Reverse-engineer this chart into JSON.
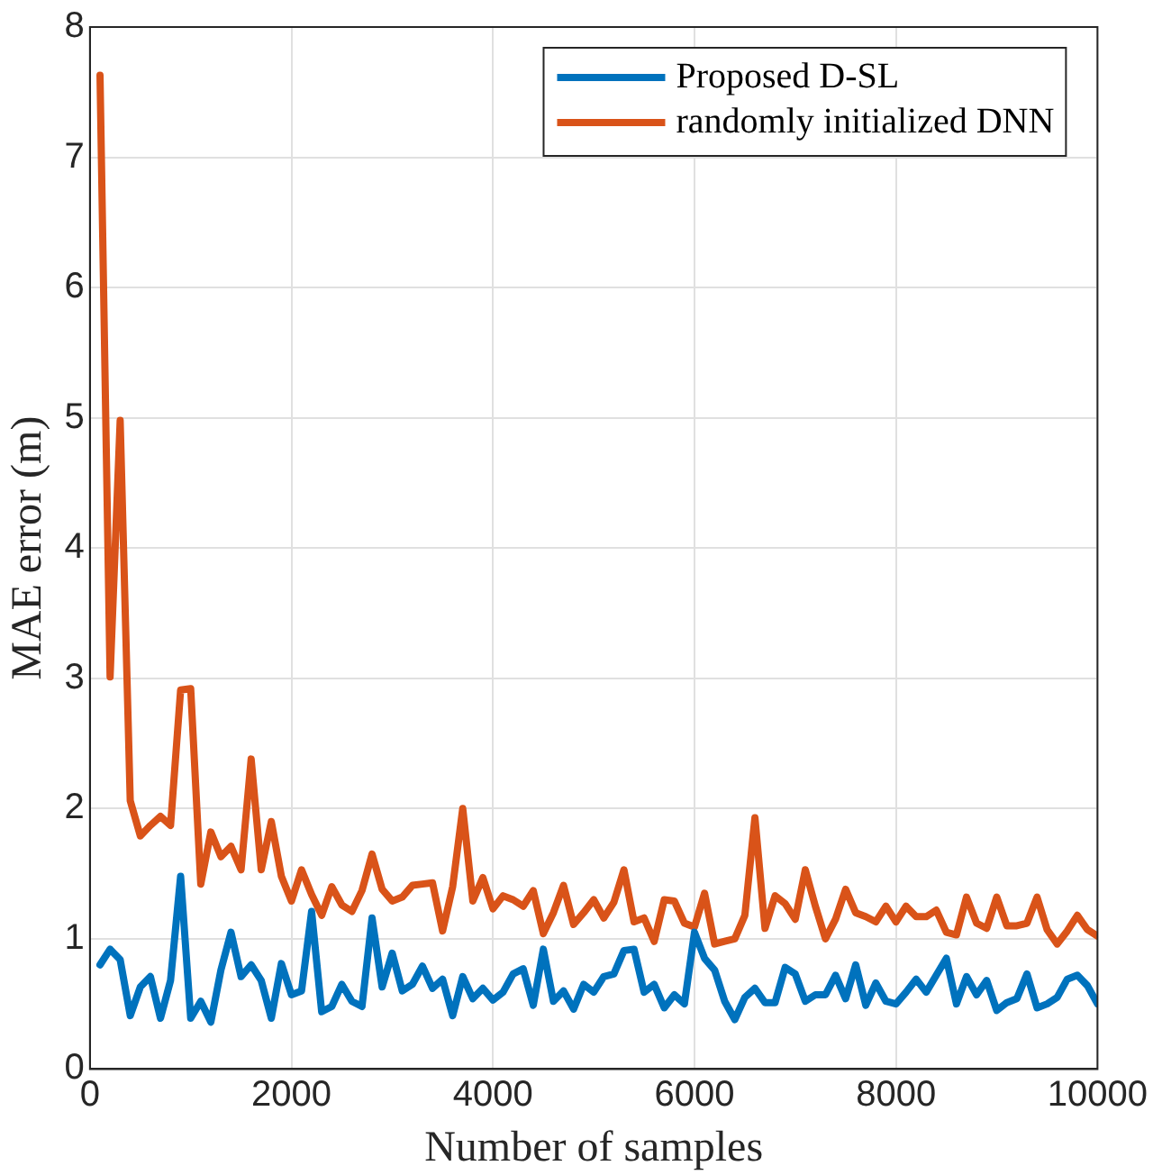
{
  "chart_data": {
    "type": "line",
    "xlabel": "Number of samples",
    "ylabel": "MAE error (m)",
    "x": [
      100,
      200,
      300,
      400,
      500,
      600,
      700,
      800,
      900,
      1000,
      1100,
      1200,
      1300,
      1400,
      1500,
      1600,
      1700,
      1800,
      1900,
      2000,
      2100,
      2200,
      2300,
      2400,
      2500,
      2600,
      2700,
      2800,
      2900,
      3000,
      3100,
      3200,
      3300,
      3400,
      3500,
      3600,
      3700,
      3800,
      3900,
      4000,
      4100,
      4200,
      4300,
      4400,
      4500,
      4600,
      4700,
      4800,
      4900,
      5000,
      5100,
      5200,
      5300,
      5400,
      5500,
      5600,
      5700,
      5800,
      5900,
      6000,
      6100,
      6200,
      6300,
      6400,
      6500,
      6600,
      6700,
      6800,
      6900,
      7000,
      7100,
      7200,
      7300,
      7400,
      7500,
      7600,
      7700,
      7800,
      7900,
      8000,
      8100,
      8200,
      8300,
      8400,
      8500,
      8600,
      8700,
      8800,
      8900,
      9000,
      9100,
      9200,
      9300,
      9400,
      9500,
      9600,
      9700,
      9800,
      9900,
      10000
    ],
    "series": [
      {
        "name": "Proposed D-SL",
        "color": "#0072bd",
        "values": [
          0.8,
          0.92,
          0.84,
          0.41,
          0.63,
          0.71,
          0.39,
          0.68,
          1.48,
          0.39,
          0.52,
          0.36,
          0.76,
          1.05,
          0.71,
          0.8,
          0.68,
          0.39,
          0.81,
          0.57,
          0.6,
          1.21,
          0.44,
          0.48,
          0.65,
          0.52,
          0.48,
          1.16,
          0.63,
          0.89,
          0.6,
          0.65,
          0.79,
          0.62,
          0.69,
          0.41,
          0.71,
          0.54,
          0.62,
          0.53,
          0.59,
          0.73,
          0.77,
          0.49,
          0.92,
          0.52,
          0.6,
          0.46,
          0.65,
          0.59,
          0.71,
          0.73,
          0.91,
          0.92,
          0.59,
          0.65,
          0.47,
          0.57,
          0.5,
          1.05,
          0.85,
          0.76,
          0.52,
          0.38,
          0.55,
          0.62,
          0.51,
          0.51,
          0.78,
          0.73,
          0.52,
          0.57,
          0.57,
          0.72,
          0.54,
          0.8,
          0.49,
          0.66,
          0.52,
          0.5,
          0.59,
          0.69,
          0.59,
          0.72,
          0.85,
          0.5,
          0.71,
          0.57,
          0.68,
          0.45,
          0.51,
          0.54,
          0.73,
          0.47,
          0.5,
          0.55,
          0.69,
          0.72,
          0.64,
          0.5
        ]
      },
      {
        "name": "randomly initialized DNN",
        "color": "#d95319",
        "values": [
          7.63,
          3.01,
          4.98,
          2.06,
          1.79,
          1.87,
          1.94,
          1.87,
          2.91,
          2.92,
          1.42,
          1.82,
          1.63,
          1.71,
          1.53,
          2.38,
          1.53,
          1.9,
          1.48,
          1.29,
          1.53,
          1.34,
          1.18,
          1.4,
          1.26,
          1.21,
          1.37,
          1.65,
          1.38,
          1.29,
          1.32,
          1.41,
          1.42,
          1.43,
          1.06,
          1.4,
          2.0,
          1.29,
          1.47,
          1.23,
          1.33,
          1.3,
          1.25,
          1.37,
          1.04,
          1.2,
          1.41,
          1.11,
          1.2,
          1.3,
          1.16,
          1.28,
          1.53,
          1.13,
          1.16,
          0.98,
          1.3,
          1.29,
          1.12,
          1.09,
          1.35,
          0.96,
          0.98,
          1.0,
          1.18,
          1.93,
          1.08,
          1.33,
          1.27,
          1.15,
          1.53,
          1.25,
          1.0,
          1.15,
          1.38,
          1.2,
          1.17,
          1.13,
          1.25,
          1.13,
          1.25,
          1.17,
          1.17,
          1.22,
          1.05,
          1.03,
          1.32,
          1.12,
          1.08,
          1.32,
          1.1,
          1.1,
          1.12,
          1.32,
          1.07,
          0.96,
          1.06,
          1.18,
          1.07,
          1.02
        ]
      }
    ],
    "xlim": [
      0,
      10000
    ],
    "xticks": [
      0,
      2000,
      4000,
      6000,
      8000,
      10000
    ],
    "ylim": [
      0,
      8
    ],
    "yticks": [
      0,
      1,
      2,
      3,
      4,
      5,
      6,
      7,
      8
    ],
    "grid": true,
    "legend": "top right"
  }
}
